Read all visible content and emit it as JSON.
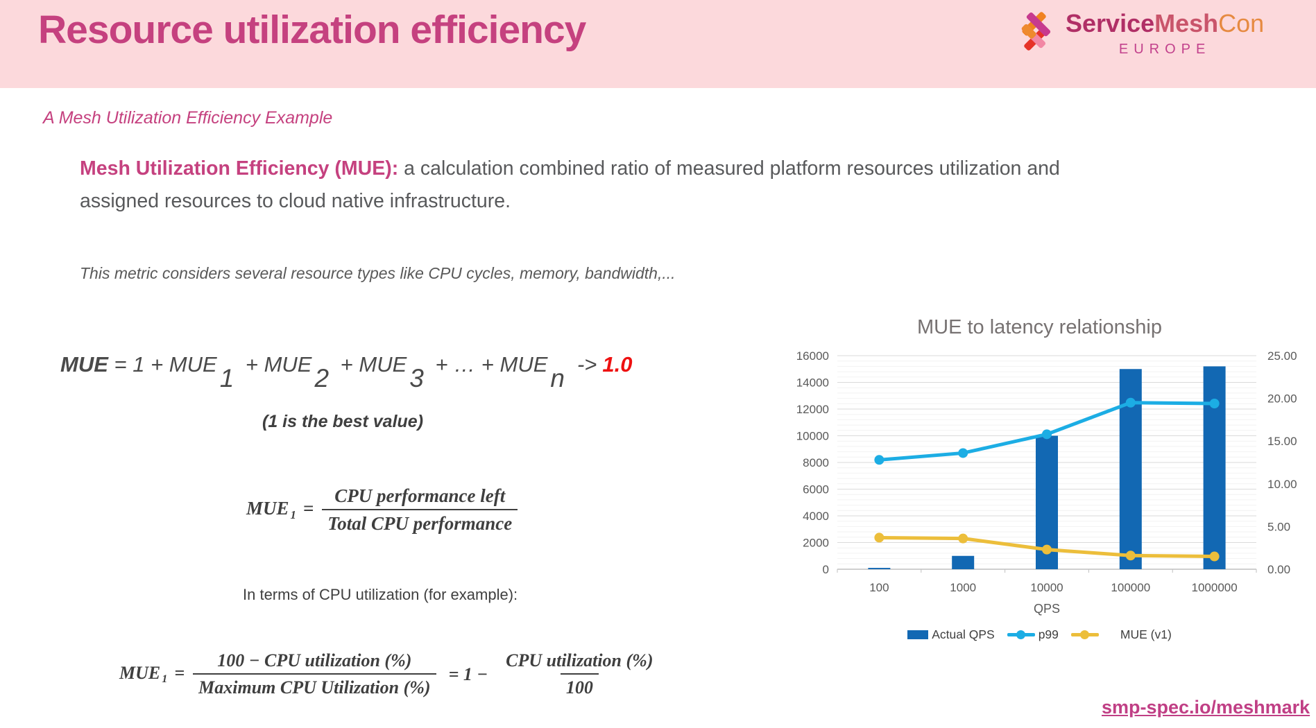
{
  "header": {
    "title": "Resource utilization efficiency",
    "logo": {
      "service": "Service",
      "mesh": "Mesh",
      "con": "Con",
      "region": "EUROPE"
    }
  },
  "subtitle": "A Mesh Utilization Efficiency Example",
  "definition": {
    "lead": "Mesh Utilization Efficiency (MUE):",
    "body": " a calculation combined ratio of measured platform resources utilization and assigned resources to cloud native infrastructure."
  },
  "note": "This metric considers several resource types like CPU cycles, memory, bandwidth,...",
  "formula_sum": {
    "lhs": "MUE",
    "mid1": " = 1 + MUE",
    "sub1": "1",
    "mid2": " + MUE",
    "sub2": "2",
    "mid3": " + MUE",
    "sub3": "3",
    "mid4": " + … + MUE",
    "subn": "n",
    "arrow": "->",
    "limit": "1.0",
    "caption": "(1 is the best value)"
  },
  "formula_def": {
    "lhs": "MUE",
    "lhs_sub": "1",
    "eq": "=",
    "numerator": "CPU performance left",
    "denominator": "Total CPU performance"
  },
  "cpu_line": "In terms of CPU utilization (for example):",
  "formula_pct": {
    "lhs": "MUE",
    "lhs_sub": "1",
    "eq": "=",
    "num1": "100 − CPU utilization (%)",
    "den1": "Maximum CPU Utilization (%)",
    "mid": "= 1 −",
    "num2": "CPU utilization (%)",
    "den2": "100"
  },
  "link": "smp-spec.io/meshmark",
  "colors": {
    "header_bg": "#FCD9DC",
    "title_pink": "#C5417F",
    "europe_pink": "#C2418C",
    "body_gray": "#58595B",
    "formula_red": "#EE1111",
    "link_pink": "#C03F85",
    "bar_blue": "#1268B3",
    "p99_cyan": "#1CADE4",
    "mue_yellow": "#ECBE3B"
  },
  "chart_data": {
    "type": "bar",
    "subtype": "combo-bar-line-dual-axis",
    "title": "MUE to latency relationship",
    "categories": [
      "100",
      "1000",
      "10000",
      "100000",
      "1000000"
    ],
    "xlabel": "QPS",
    "left_axis": {
      "min": 0,
      "max": 16000,
      "step": 2000,
      "ticks": [
        "0",
        "2000",
        "4000",
        "6000",
        "8000",
        "10000",
        "12000",
        "14000",
        "16000"
      ]
    },
    "right_axis": {
      "min": 0,
      "max": 25,
      "step": 5,
      "ticks": [
        "0.00",
        "5.00",
        "10.00",
        "15.00",
        "20.00",
        "25.00"
      ]
    },
    "series": [
      {
        "name": "Actual QPS",
        "type": "bar",
        "axis": "left",
        "color": "#1268B3",
        "values": [
          100,
          1000,
          10000,
          15000,
          15200
        ]
      },
      {
        "name": "p99",
        "type": "line",
        "axis": "right",
        "color": "#1CADE4",
        "values": [
          12.8,
          13.6,
          15.8,
          19.5,
          19.4
        ]
      },
      {
        "name": "MUE (v1)",
        "type": "line",
        "axis": "right",
        "color": "#ECBE3B",
        "values": [
          3.7,
          3.6,
          2.3,
          1.6,
          1.5
        ]
      }
    ],
    "legend_position": "bottom",
    "grid": true
  }
}
